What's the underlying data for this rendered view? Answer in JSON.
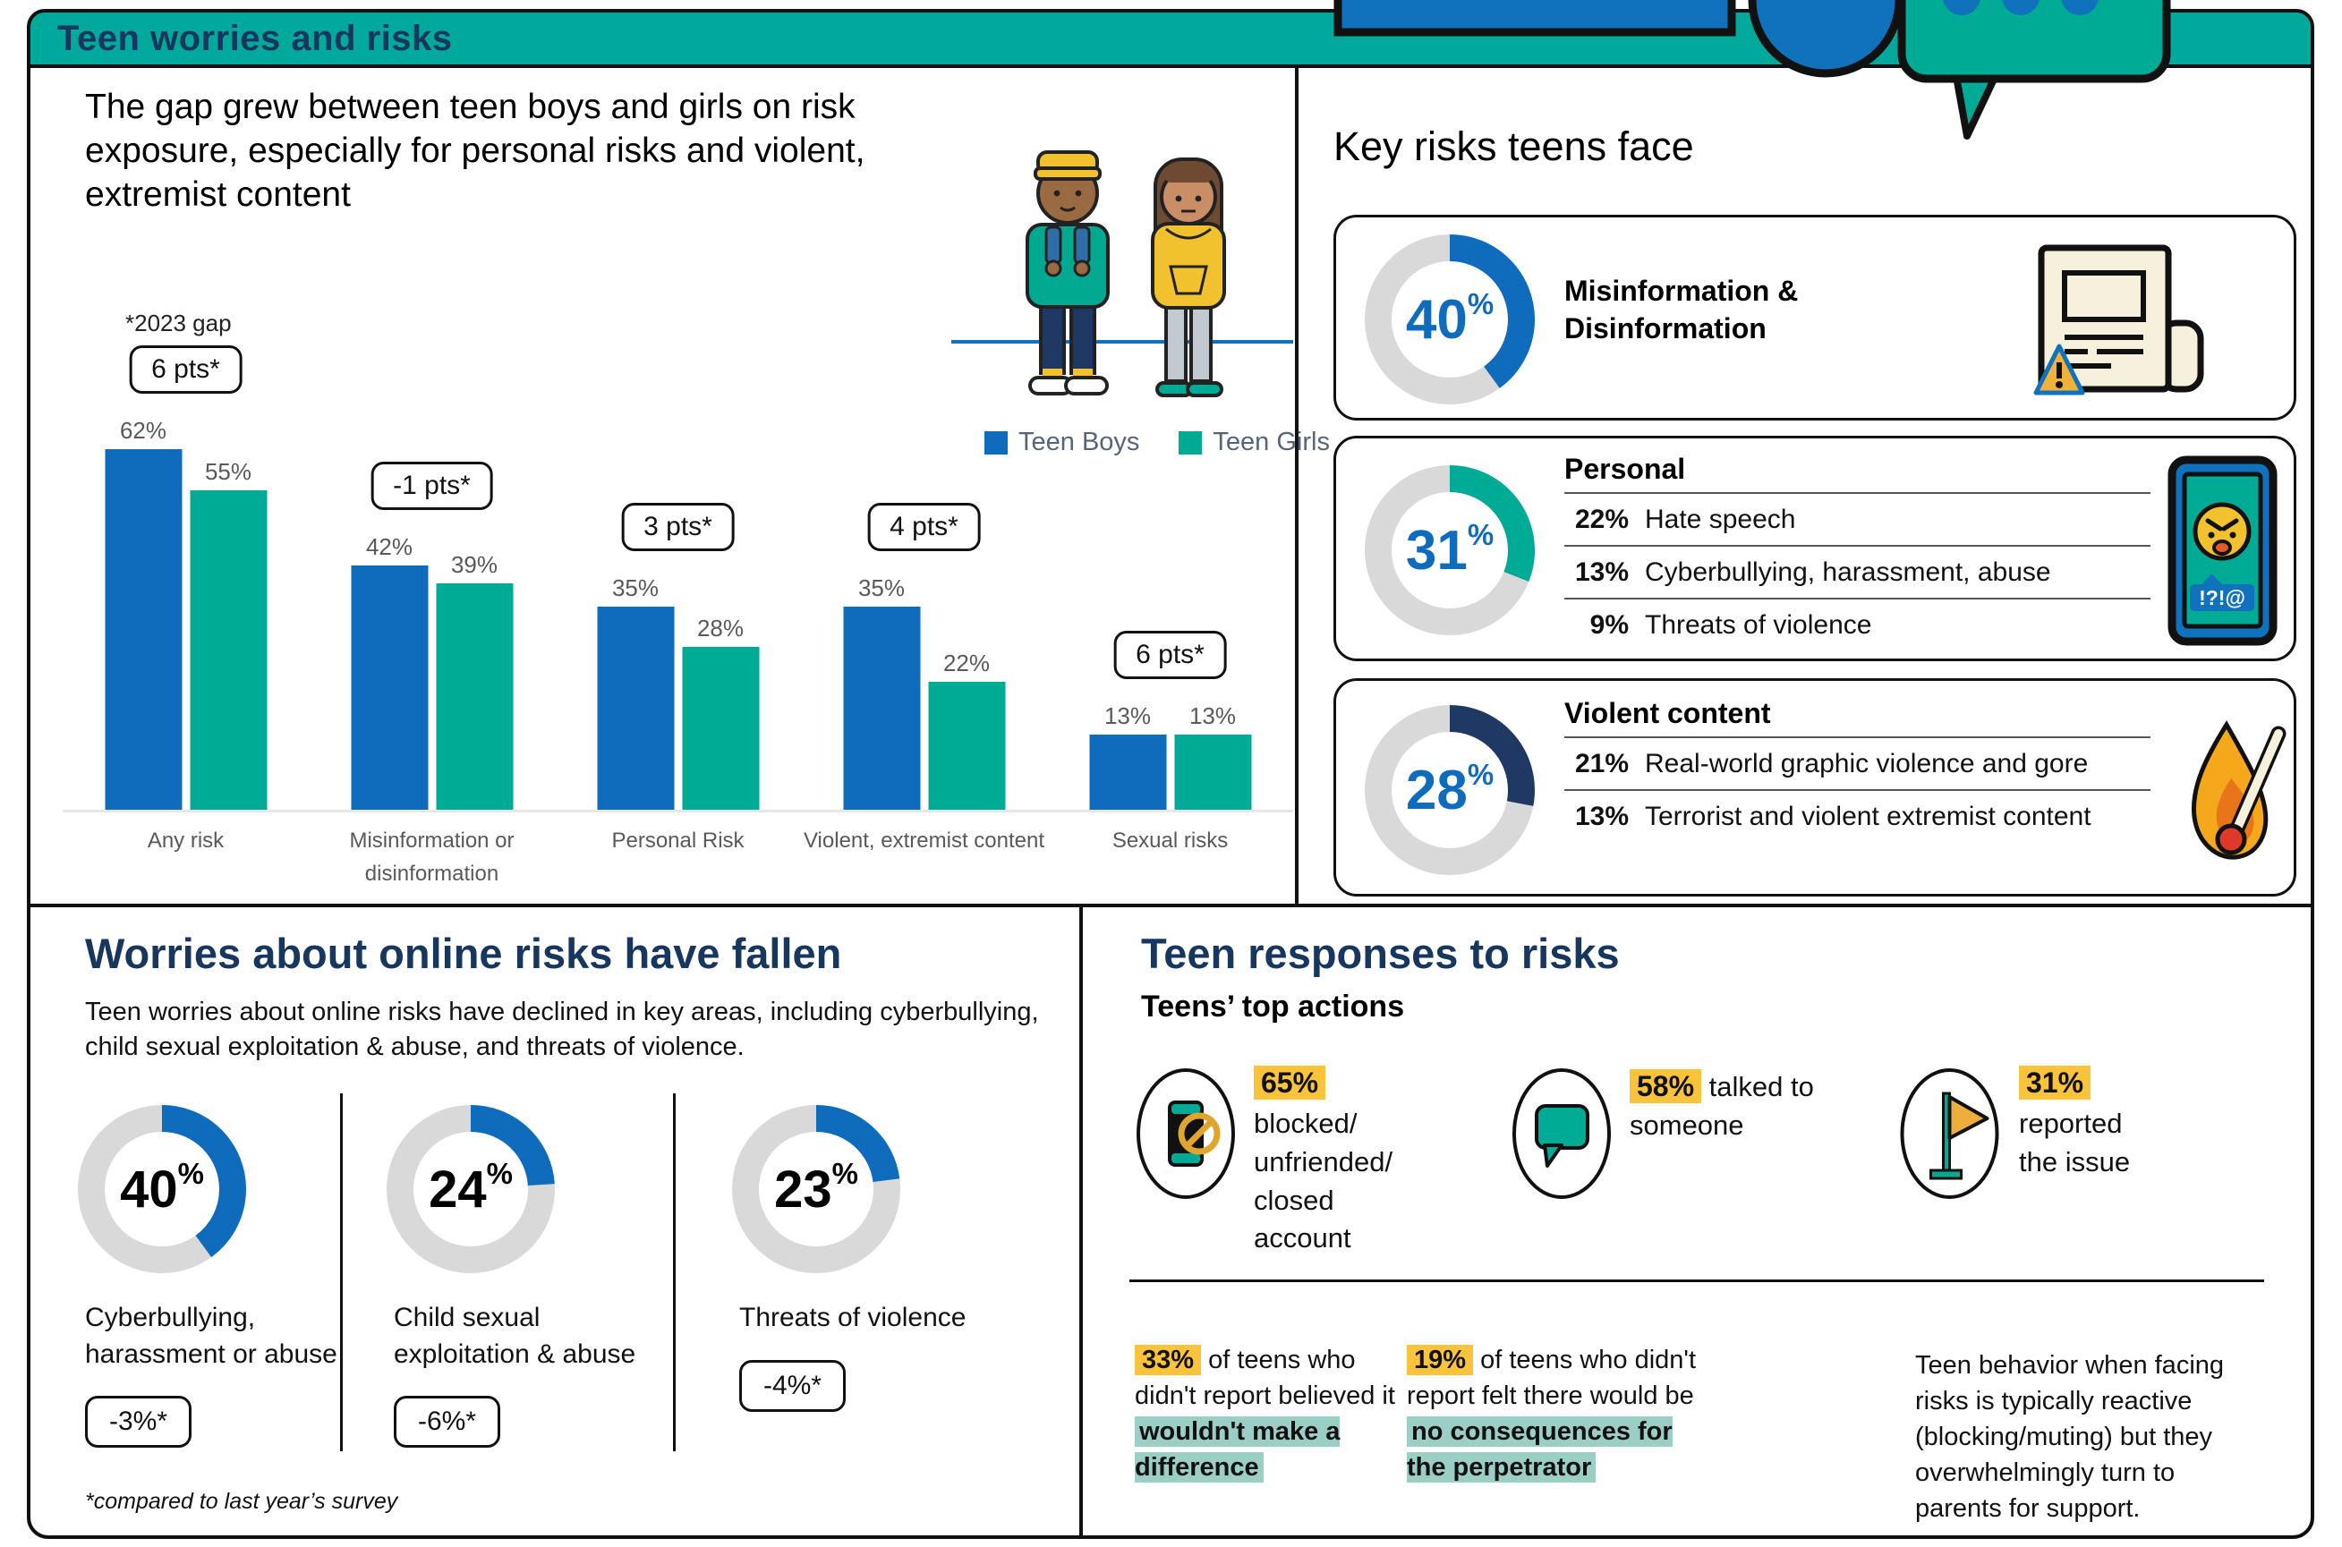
{
  "header": {
    "title": "Teen worries and risks"
  },
  "colors": {
    "teal": "#00A99B",
    "teal_bar": "#00AB96",
    "blue": "#0F6CBD",
    "navy_heading": "#17375E",
    "navy_arc": "#1F3864",
    "yellow_highlight": "#FAC33C",
    "teal_highlight": "#9BCEC5",
    "gray_track": "#D9D9D9",
    "gray_text": "#595959"
  },
  "decor_icons": [
    "screen-banner-icon",
    "chat-circle-icon",
    "speech-bubble-dots-icon"
  ],
  "gap_panel": {
    "heading": "The gap grew between teen boys and girls on risk exposure, especially for personal risks and violent, extremist content",
    "annotation": "*2023 gap",
    "illustration": "teen-boy-and-girl-illustration"
  },
  "key_risks": {
    "heading": "Key risks teens face"
  },
  "worries": {
    "heading": "Worries about online risks have fallen",
    "subheading": "Teen worries about online risks have declined in key areas, including cyberbullying, child sexual exploitation & abuse, and threats of violence.",
    "footnote": "*compared to last year’s survey"
  },
  "responses": {
    "heading": "Teen responses to risks",
    "subheading": "Teens’ top actions",
    "actions": [
      {
        "percent": "65%",
        "text": "blocked/\nunfriended/\nclosed\naccount",
        "icon": "phone-blocked-icon"
      },
      {
        "percent": "58%",
        "text": "talked to someone",
        "icon": "speech-bubble-icon"
      },
      {
        "percent": "31%",
        "text": "reported\nthe issue",
        "icon": "report-flag-icon"
      }
    ],
    "notes": [
      {
        "percent": "33%",
        "pre": "of teens who didn't report believed it",
        "highlight": "wouldn't make a difference"
      },
      {
        "percent": "19%",
        "pre": "of teens who didn't report felt there would be",
        "highlight": "no consequences for the perpetrator"
      },
      {
        "text": "Teen behavior when facing risks is typically reactive (blocking/muting) but they overwhelmingly turn to parents for support."
      }
    ]
  },
  "chart_data": [
    {
      "type": "bar",
      "title": "The gap grew between teen boys and girls on risk exposure, especially for personal risks and violent, extremist content",
      "categories": [
        "Any risk",
        "Misinformation or disinformation",
        "Personal Risk",
        "Violent, extremist content",
        "Sexual risks"
      ],
      "series": [
        {
          "name": "Teen Boys",
          "color": "#0F6CBD",
          "values": [
            62,
            42,
            35,
            35,
            13
          ]
        },
        {
          "name": "Teen Girls",
          "color": "#00AB96",
          "values": [
            55,
            39,
            28,
            22,
            13
          ]
        }
      ],
      "gap_labels": [
        "6 pts*",
        "-1 pts*",
        "3 pts*",
        "4 pts*",
        "6 pts*"
      ],
      "annotation": "*2023 gap",
      "ylim": [
        0,
        70
      ],
      "value_suffix": "%",
      "grid": false,
      "legend_position": "right of chart, below illustration"
    },
    {
      "type": "donut",
      "title": "Key risks teens face",
      "items": [
        {
          "value": 40,
          "color": "#0F6CBD",
          "label": "Misinformation & Disinformation",
          "icon": "newspaper-warning-icon",
          "rows": []
        },
        {
          "value": 31,
          "color": "#00AB96",
          "label": "Personal",
          "icon": "phone-angry-emoji-icon",
          "rows": [
            {
              "pct": "22%",
              "label": "Hate speech"
            },
            {
              "pct": "13%",
              "label": "Cyberbullying, harassment, abuse"
            },
            {
              "pct": "9%",
              "label": "Threats of violence"
            }
          ]
        },
        {
          "value": 28,
          "color": "#1F3864",
          "label": "Violent content",
          "icon": "burning-match-icon",
          "rows": [
            {
              "pct": "21%",
              "label": "Real-world graphic violence and gore"
            },
            {
              "pct": "13%",
              "label": "Terrorist and violent extremist content"
            }
          ]
        }
      ]
    },
    {
      "type": "donut",
      "title": "Worries about online risks have fallen",
      "items": [
        {
          "value": 40,
          "color": "#0F6CBD",
          "label": "Cyberbullying, harassment or abuse",
          "change": "-3%*"
        },
        {
          "value": 24,
          "color": "#0F6CBD",
          "label": "Child sexual exploitation & abuse",
          "change": "-6%*"
        },
        {
          "value": 23,
          "color": "#0F6CBD",
          "label": "Threats of violence",
          "change": "-4%*"
        }
      ],
      "footnote": "*compared to last year’s survey"
    }
  ]
}
